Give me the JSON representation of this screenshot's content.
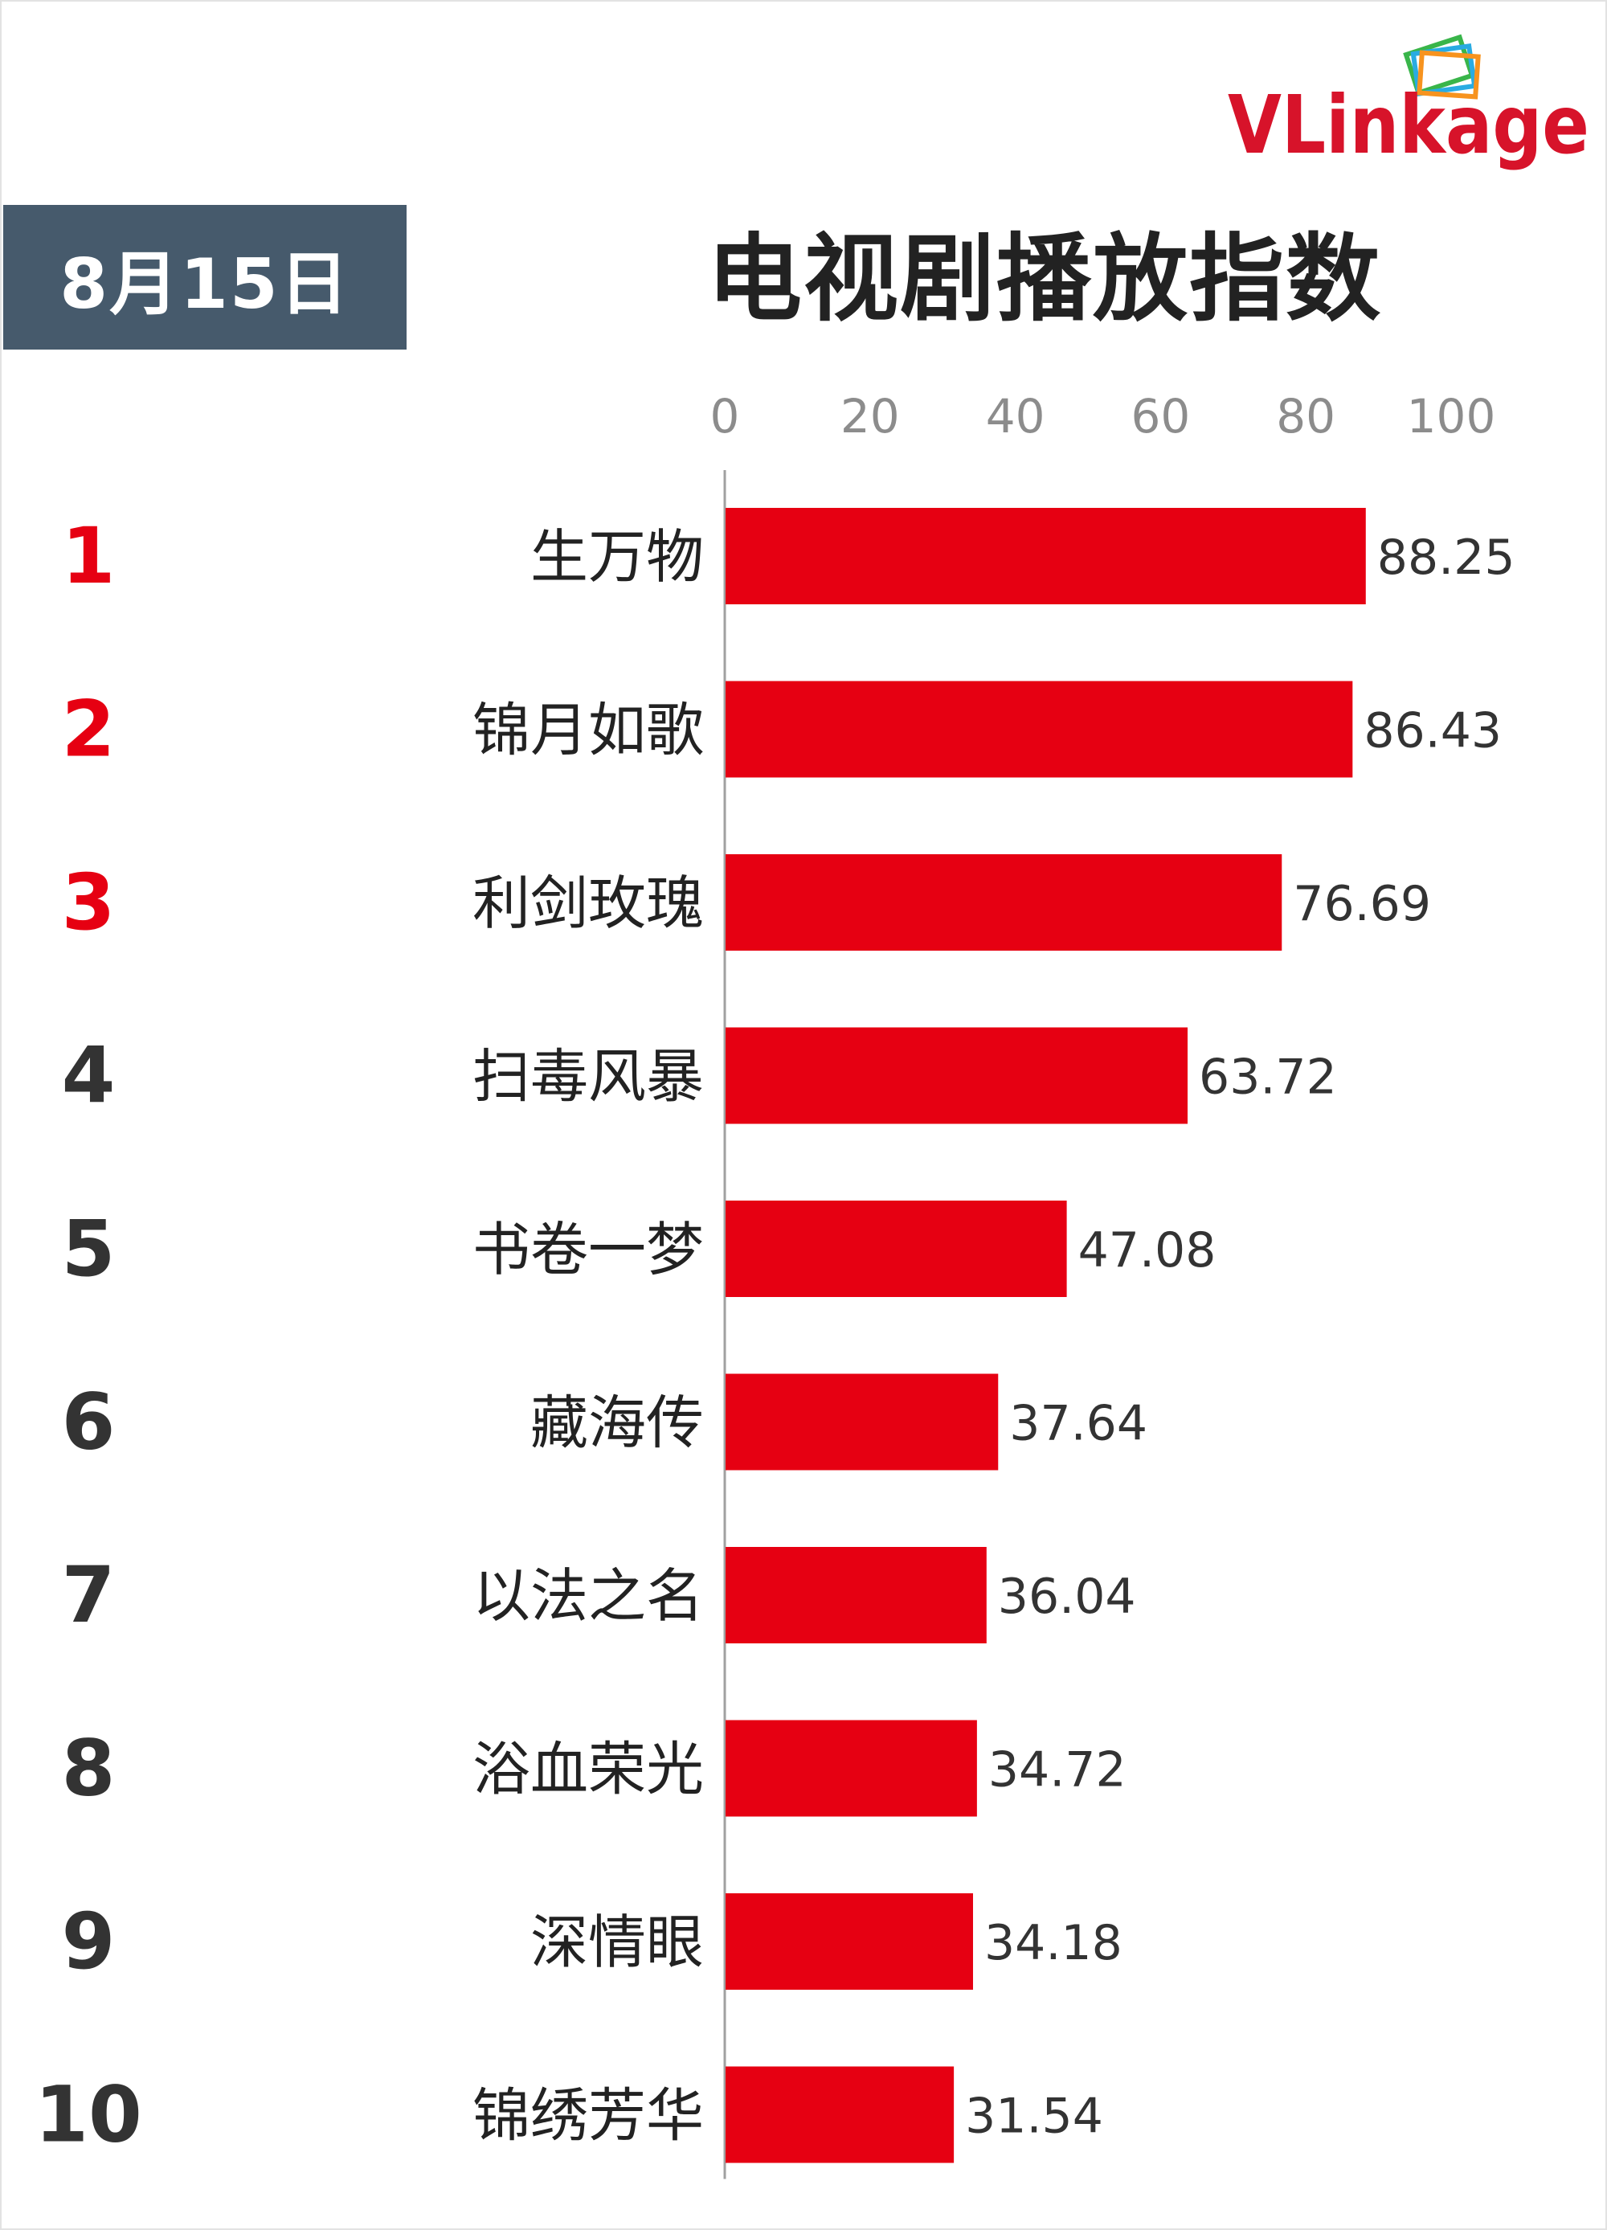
{
  "header": {
    "brand": "VLinkage",
    "date": "8月15日",
    "title": "电视剧播放指数"
  },
  "colors": {
    "bar": "#e60012",
    "rank_top3": "#e60012",
    "rank_other": "#333333",
    "badge_bg": "#465a6c"
  },
  "chart_data": {
    "type": "bar",
    "orientation": "horizontal",
    "title": "电视剧播放指数",
    "xlim": [
      0,
      100
    ],
    "ticks": [
      "0",
      "20",
      "40",
      "60",
      "80",
      "100"
    ],
    "grid": false,
    "ranks": [
      "1",
      "2",
      "3",
      "4",
      "5",
      "6",
      "7",
      "8",
      "9",
      "10"
    ],
    "categories": [
      "生万物",
      "锦月如歌",
      "利剑玫瑰",
      "扫毒风暴",
      "书卷一梦",
      "藏海传",
      "以法之名",
      "浴血荣光",
      "深情眼",
      "锦绣芳华"
    ],
    "values": [
      88.25,
      86.43,
      76.69,
      63.72,
      47.08,
      37.64,
      36.04,
      34.72,
      34.18,
      31.54
    ],
    "value_labels": [
      "88.25",
      "86.43",
      "76.69",
      "63.72",
      "47.08",
      "37.64",
      "36.04",
      "34.72",
      "34.18",
      "31.54"
    ]
  }
}
